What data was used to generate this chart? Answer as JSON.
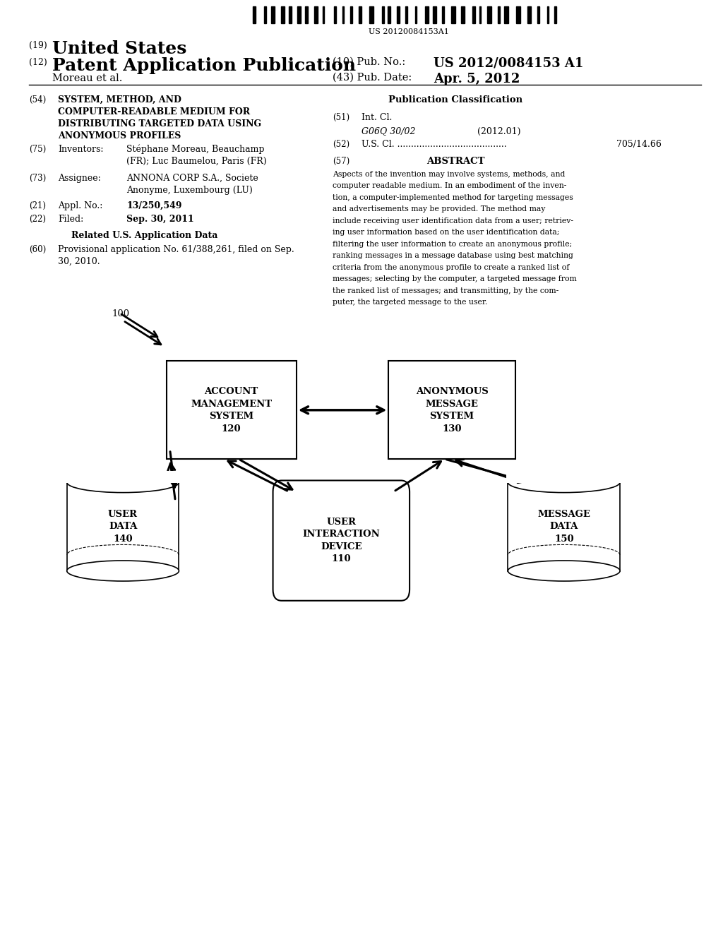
{
  "bg_color": "#ffffff",
  "barcode_text": "US 20120084153A1",
  "abstract_lines": [
    "Aspects of the invention may involve systems, methods, and",
    "computer readable medium. In an embodiment of the inven-",
    "tion, a computer-implemented method for targeting messages",
    "and advertisements may be provided. The method may",
    "include receiving user identification data from a user; retriev-",
    "ing user information based on the user identification data;",
    "filtering the user information to create an anonymous profile;",
    "ranking messages in a message database using best matching",
    "criteria from the anonymous profile to create a ranked list of",
    "messages; selecting by the computer, a targeted message from",
    "the ranked list of messages; and transmitting, by the com-",
    "puter, the targeted message to the user."
  ],
  "box_ams_label": "ACCOUNT\nMANAGEMENT\nSYSTEM\n120",
  "box_anon_label": "ANONYMOUS\nMESSAGE\nSYSTEM\n130",
  "box_uid_label": "USER\nINTERACTION\nDEVICE\n110",
  "cyl_user_label": "USER\nDATA\n140",
  "cyl_msg_label": "MESSAGE\nDATA\n150"
}
